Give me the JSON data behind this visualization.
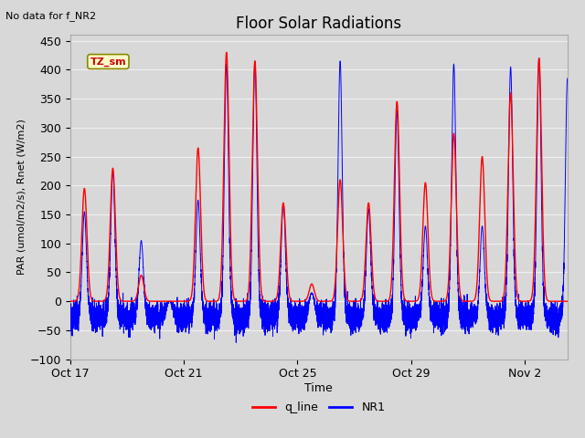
{
  "title": "Floor Solar Radiations",
  "xlabel": "Time",
  "ylabel": "PAR (umol/m2/s), Rnet (W/m2)",
  "top_left_text": "No data for f_NR2",
  "legend_label_box": "TZ_sm",
  "legend_entries": [
    "q_line",
    "NR1"
  ],
  "legend_colors": [
    "red",
    "blue"
  ],
  "ylim": [
    -100,
    460
  ],
  "yticks": [
    -100,
    -50,
    0,
    50,
    100,
    150,
    200,
    250,
    300,
    350,
    400,
    450
  ],
  "xtick_labels": [
    "Oct 17",
    "Oct 21",
    "Oct 25",
    "Oct 29",
    "Nov 2"
  ],
  "plot_bg_color": "#d8d8d8",
  "grid_color": "#f0f0f0",
  "fig_bg_color": "#d8d8d8",
  "num_points": 8000,
  "total_days": 17.5
}
